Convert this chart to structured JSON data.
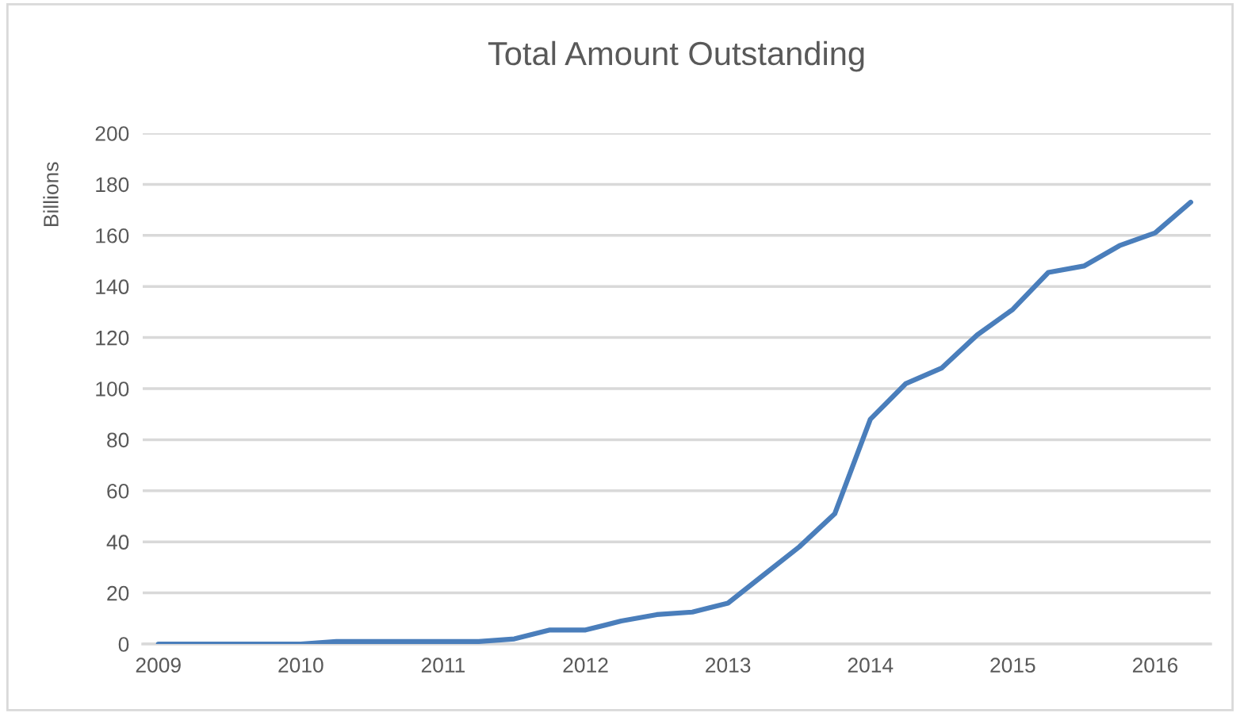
{
  "chart_data": {
    "type": "line",
    "title": "Total Amount Outstanding",
    "ylabel": "Billions",
    "x": [
      2009,
      2009.25,
      2009.5,
      2009.75,
      2010,
      2010.25,
      2010.5,
      2010.75,
      2011,
      2011.25,
      2011.5,
      2011.75,
      2012,
      2012.25,
      2012.5,
      2012.75,
      2013,
      2013.25,
      2013.5,
      2013.75,
      2014,
      2014.25,
      2014.5,
      2014.75,
      2015,
      2015.25,
      2015.5,
      2015.75,
      2016,
      2016.25
    ],
    "series": [
      {
        "color": "#4a7ebb",
        "values": [
          0,
          0,
          0,
          0,
          0,
          1,
          1,
          1,
          1,
          1,
          2,
          5.5,
          5.5,
          9,
          11.5,
          12.5,
          16,
          27,
          38,
          51,
          88,
          102,
          108,
          121,
          131,
          145.5,
          148,
          156,
          161,
          173
        ]
      }
    ],
    "xlim": [
      2008.89,
      2016.39
    ],
    "xticks": [
      2009,
      2010,
      2011,
      2012,
      2013,
      2014,
      2015,
      2016
    ],
    "ylim": [
      0,
      200
    ],
    "yticks": [
      0,
      20,
      40,
      60,
      80,
      100,
      120,
      140,
      160,
      180,
      200
    ],
    "grid": "y",
    "legend": false,
    "marker": "none",
    "line_style": "solid"
  }
}
